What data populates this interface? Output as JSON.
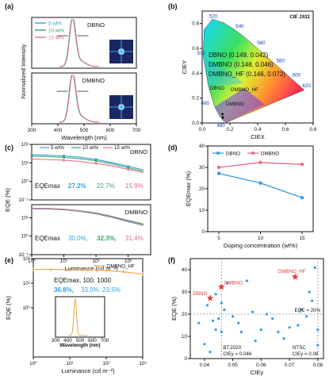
{
  "panels": {
    "a": "(a)",
    "b": "(b)",
    "c": "(c)",
    "d": "(d)",
    "e": "(e)",
    "f": "(f)"
  },
  "colors": {
    "blue": "#2f9fe0",
    "green": "#35a66a",
    "pink": "#e86b86",
    "orange": "#f5a043",
    "red": "#e63c3c",
    "gray": "#8f8f8f"
  },
  "chart_data": [
    {
      "id": "a",
      "type": "line",
      "title": "",
      "xlabel": "Wavelength (nm)",
      "ylabel": "Normalized Intensity",
      "xlim": [
        300,
        700
      ],
      "x_ticks": [
        "300",
        "400",
        "500",
        "600",
        "700"
      ],
      "legend": [
        "5 wt%",
        "10 wt%",
        "15 wt%"
      ],
      "subplots": [
        {
          "label": "DBNO",
          "peak_nm": 456,
          "fwhm_nm": 28
        },
        {
          "label": "DMBNO",
          "peak_nm": 456,
          "fwhm_nm": 29
        }
      ]
    },
    {
      "id": "b",
      "type": "scatter",
      "title": "CIE 1931",
      "xlabel": "CIEX",
      "ylabel": "CIEY",
      "xlim": [
        0,
        0.8
      ],
      "ylim": [
        0,
        0.9
      ],
      "x_ticks": [
        "0.0",
        "0.2",
        "0.4",
        "0.6",
        "0.8"
      ],
      "y_ticks": [
        "0.0",
        "0.2",
        "0.4",
        "0.6",
        "0.8"
      ],
      "wavelength_labels": [
        "460",
        "480",
        "500",
        "520",
        "540",
        "560",
        "580",
        "600",
        "620"
      ],
      "entries": [
        "DBNO (0.149, 0.042)",
        "DMBNO (0.148, 0.046)",
        "DMBNO_HF (0.146, 0.072)"
      ],
      "marker_labels": [
        "DBNO",
        "DMBNO",
        "DMBNO_HF"
      ]
    },
    {
      "id": "c",
      "type": "line",
      "title": "",
      "xlabel": "Luminance (cd m⁻²)",
      "ylabel": "EQE (%)",
      "xlim": [
        1,
        5000
      ],
      "x_ticks": [
        "10⁰",
        "10¹",
        "10²",
        "10³"
      ],
      "legend": [
        "5 wt%",
        "10 wt%",
        "15 wt%"
      ],
      "subplots": [
        {
          "label": "DBNO",
          "eqe_label": "EQEmax",
          "eqe_values": [
            "27.2%",
            "22.7%",
            "15.9%"
          ],
          "y_ticks": [
            "10⁻¹",
            "10⁰",
            "10¹",
            "10²"
          ],
          "series": [
            {
              "name": "5 wt%",
              "x": [
                1,
                3,
                10,
                30,
                100,
                300,
                1000,
                3000
              ],
              "y": [
                27.2,
                26.5,
                24.0,
                20.5,
                15.5,
                10.5,
                6.5,
                4.2
              ]
            },
            {
              "name": "10 wt%",
              "x": [
                1,
                3,
                10,
                30,
                100,
                300,
                1000,
                3000
              ],
              "y": [
                22.7,
                22.0,
                20.0,
                17.0,
                13.0,
                9.0,
                5.5,
                3.5
              ]
            },
            {
              "name": "15 wt%",
              "x": [
                1,
                3,
                10,
                30,
                100,
                300,
                1000,
                3000
              ],
              "y": [
                15.9,
                15.3,
                14.0,
                12.0,
                9.5,
                7.0,
                4.5,
                3.0
              ]
            }
          ]
        },
        {
          "label": "DMBNO",
          "eqe_label": "EQEmax",
          "eqe_values": [
            "30.0%,",
            "32.3%,",
            "31.4%"
          ],
          "y_ticks": [
            "10⁻¹",
            "10⁰",
            "10¹"
          ],
          "series": [
            {
              "name": "5 wt%",
              "x": [
                1,
                3,
                10,
                30,
                100,
                300,
                1000,
                3000
              ],
              "y": [
                30.0,
                29.0,
                26.5,
                22.0,
                16.0,
                10.5,
                6.0,
                3.8
              ]
            },
            {
              "name": "10 wt%",
              "x": [
                1,
                3,
                10,
                30,
                100,
                300,
                1000,
                3000
              ],
              "y": [
                32.3,
                31.5,
                28.5,
                24.0,
                18.0,
                12.0,
                7.0,
                4.5
              ]
            },
            {
              "name": "15 wt%",
              "x": [
                1,
                3,
                10,
                30,
                100,
                300,
                1000,
                3000
              ],
              "y": [
                31.4,
                30.5,
                27.5,
                23.0,
                17.0,
                11.0,
                6.5,
                4.0
              ]
            }
          ]
        }
      ]
    },
    {
      "id": "d",
      "type": "line",
      "title": "",
      "xlabel": "Doping concentration (wt%)",
      "ylabel": "EQEmax (%)",
      "categories": [
        "5",
        "10",
        "15"
      ],
      "x": [
        5,
        10,
        15
      ],
      "ylim": [
        0,
        40
      ],
      "y_ticks": [
        "0",
        "10",
        "20",
        "30",
        "40"
      ],
      "series": [
        {
          "name": "DBNO",
          "values": [
            27.2,
            22.7,
            15.9
          ]
        },
        {
          "name": "DMBNO",
          "values": [
            30.0,
            32.3,
            31.4
          ]
        }
      ]
    },
    {
      "id": "e",
      "type": "line",
      "title": "",
      "xlabel": "Luminance (cd m⁻²)",
      "ylabel": "EQE (%)",
      "xlim": [
        1,
        1000
      ],
      "x_ticks": [
        "10⁰",
        "10¹",
        "10²",
        "10³"
      ],
      "y_ticks": [
        "10⁰",
        "10¹",
        "10²"
      ],
      "legend": [
        "DMBNO_HF"
      ],
      "eqe_label": "EQEmax, 100, 1000",
      "eqe_values": [
        "36.8%,",
        "33.0%, 23.5%"
      ],
      "series": [
        {
          "name": "DMBNO_HF",
          "x": [
            1,
            3,
            10,
            30,
            100,
            300,
            1000
          ],
          "y": [
            36.8,
            36.5,
            35.5,
            34.5,
            33.0,
            29.0,
            23.5
          ]
        }
      ],
      "inset": {
        "xlabel": "Wavelength (nm)",
        "x_ticks": [
          "300",
          "400",
          "500",
          "600",
          "700"
        ],
        "peak_nm": 460
      }
    },
    {
      "id": "f",
      "type": "scatter",
      "title": "",
      "xlabel": "CIEy",
      "ylabel": "EQE (%)",
      "xlim": [
        0.035,
        0.082
      ],
      "ylim": [
        0,
        45
      ],
      "x_ticks": [
        "0.04",
        "0.05",
        "0.06",
        "0.07",
        "0.08"
      ],
      "y_ticks": [
        "0",
        "10",
        "20",
        "30",
        "40"
      ],
      "reference_lines": [
        {
          "text": "EQE = 20%",
          "value": 20
        },
        {
          "text": "BT.2020 CIEy = 0.046",
          "value": 0.046
        },
        {
          "text": "NTSC CIEy = 0.08",
          "value": 0.08
        }
      ],
      "highlighted": [
        {
          "name": "DBNO",
          "x": 0.042,
          "y": 27.2
        },
        {
          "name": "DMBNO",
          "x": 0.046,
          "y": 32.3
        },
        {
          "name": "DMBNO_HF",
          "x": 0.072,
          "y": 36.8
        }
      ],
      "others": {
        "x": [
          0.038,
          0.04,
          0.041,
          0.042,
          0.043,
          0.044,
          0.044,
          0.045,
          0.046,
          0.046,
          0.047,
          0.048,
          0.05,
          0.052,
          0.053,
          0.055,
          0.057,
          0.058,
          0.06,
          0.062,
          0.064,
          0.066,
          0.068,
          0.07,
          0.073,
          0.074,
          0.076,
          0.077,
          0.078,
          0.079,
          0.08,
          0.08
        ],
        "y": [
          16,
          6.5,
          24,
          3,
          17,
          13,
          29,
          18,
          25,
          12,
          22,
          34,
          19,
          16,
          12,
          35,
          21,
          8,
          13,
          20,
          18,
          12,
          9,
          14,
          15,
          22,
          19,
          30,
          26,
          41,
          13,
          6
        ]
      }
    }
  ]
}
